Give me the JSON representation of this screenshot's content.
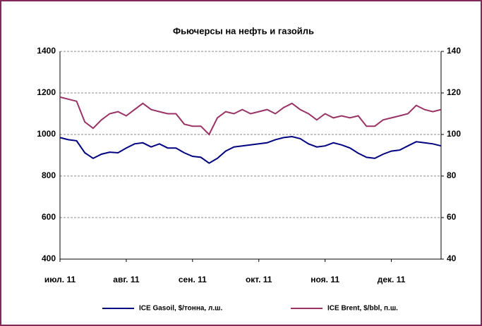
{
  "chart_data": {
    "type": "line",
    "title": "Фьючерсы на нефть  и газойль",
    "categories": [
      "июл. 11",
      null,
      null,
      null,
      null,
      null,
      null,
      null,
      "авг. 11",
      null,
      null,
      null,
      null,
      null,
      null,
      null,
      "сен. 11",
      null,
      null,
      null,
      null,
      null,
      null,
      null,
      "окт. 11",
      null,
      null,
      null,
      null,
      null,
      null,
      null,
      "ноя. 11",
      null,
      null,
      null,
      null,
      null,
      null,
      null,
      "дек. 11",
      null,
      null,
      null,
      null,
      null,
      null
    ],
    "series": [
      {
        "name": "ICE Gasoil, $/тонна,  л.ш.",
        "color": "#000080",
        "axis": "y",
        "values": [
          985,
          975,
          970,
          912,
          885,
          905,
          915,
          912,
          935,
          955,
          960,
          940,
          955,
          935,
          935,
          912,
          895,
          890,
          862,
          885,
          920,
          940,
          945,
          950,
          955,
          960,
          975,
          985,
          990,
          980,
          955,
          940,
          945,
          960,
          950,
          935,
          910,
          890,
          885,
          905,
          920,
          925,
          945,
          965,
          960,
          955,
          945
        ]
      },
      {
        "name": "ICE Brent, $/bbl,  п.ш.",
        "color": "#993366",
        "axis": "y2",
        "values": [
          118,
          117,
          116,
          106,
          103,
          107,
          110,
          111,
          109,
          112,
          115,
          112,
          111,
          110,
          110,
          105,
          104,
          104,
          100,
          108,
          111,
          110,
          112,
          110,
          111,
          112,
          110,
          113,
          115,
          112,
          110,
          107,
          110,
          108,
          109,
          108,
          109,
          104,
          104,
          107,
          108,
          109,
          110,
          114,
          112,
          111,
          112
        ]
      }
    ],
    "ylim": [
      400,
      1400
    ],
    "yticks": [
      400,
      600,
      800,
      1000,
      1200,
      1400
    ],
    "y2lim": [
      40,
      140
    ],
    "y2ticks": [
      40,
      60,
      80,
      100,
      120,
      140
    ],
    "grid": true
  }
}
